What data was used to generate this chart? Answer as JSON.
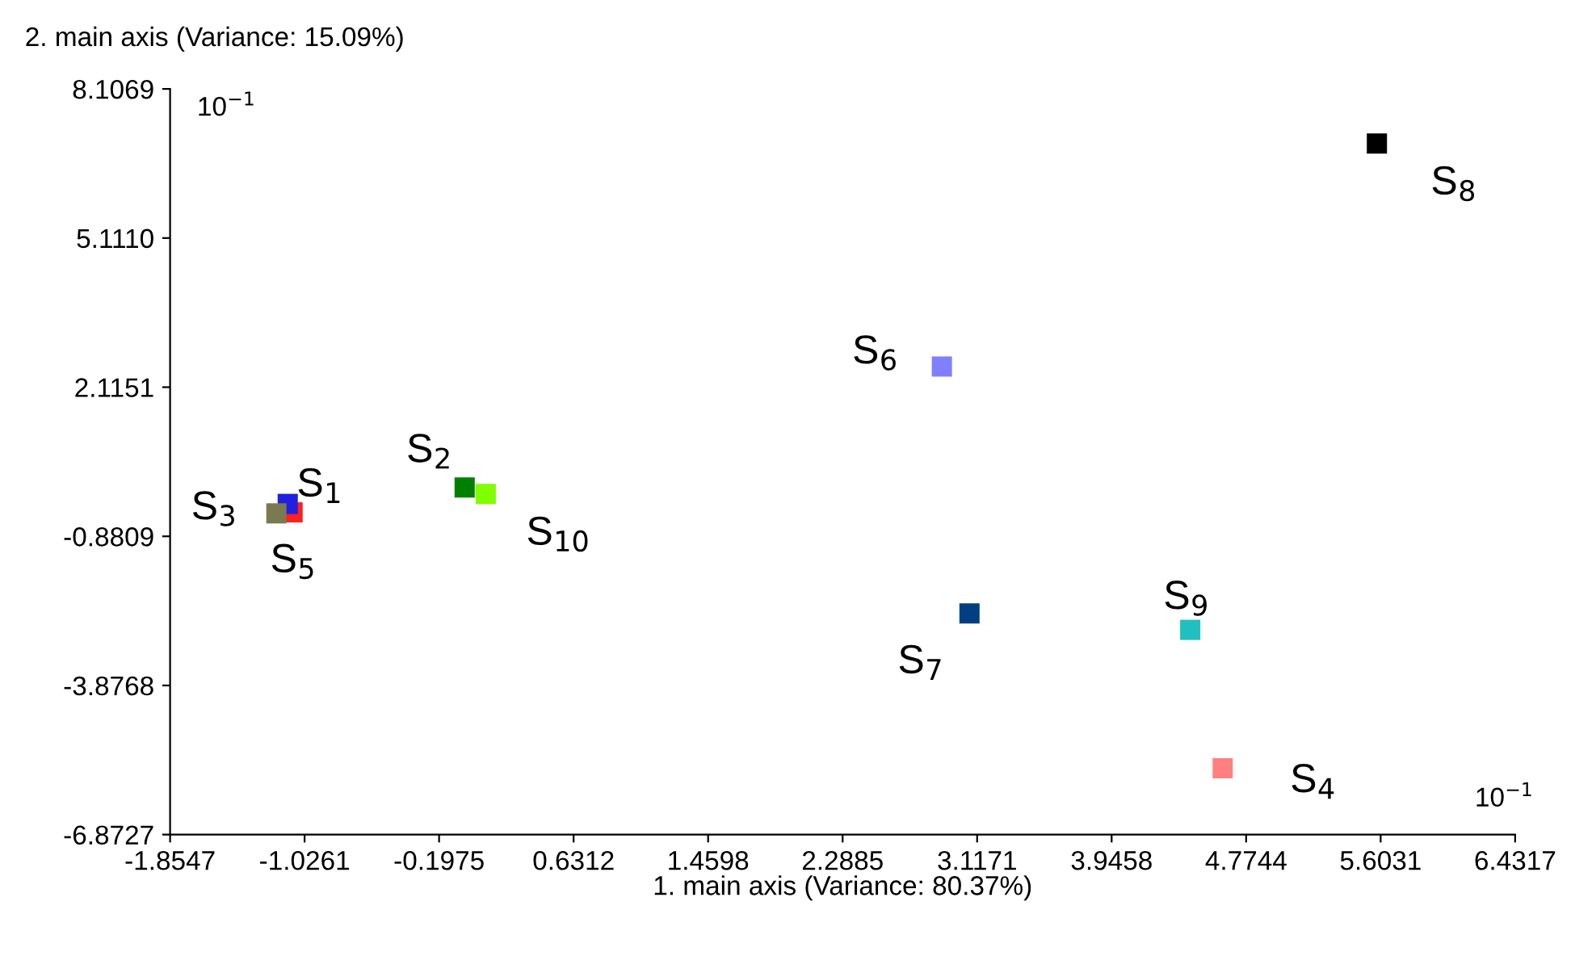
{
  "chart_data": {
    "type": "scatter",
    "xlabel": "1. main axis (Variance: 80.37%)",
    "ylabel": "2. main axis (Variance: 15.09%)",
    "annotations": [
      "10$^{−1}$",
      "10$^{−1}$"
    ],
    "marker": "square",
    "legend": false,
    "grid": false,
    "xlim": [
      -1.8547,
      6.4317
    ],
    "ylim": [
      -6.8727,
      8.1069
    ],
    "xticks": [
      -1.8547,
      -1.0261,
      -0.1975,
      0.6312,
      1.4598,
      2.2885,
      3.1171,
      3.9458,
      4.7744,
      5.6031,
      6.4317
    ],
    "yticks": [
      -6.8727,
      -3.8768,
      -0.8809,
      2.1151,
      {
        "value": 5.111,
        "label": "5.1110"
      },
      8.1069
    ],
    "series": [
      {
        "name": "S$_{5}$",
        "color": "#ff2020",
        "x": [
          -1.1
        ],
        "values": [
          -0.4
        ]
      },
      {
        "name": "S$_{1}$",
        "color": "#2020e0",
        "x": [
          -1.13
        ],
        "values": [
          -0.23
        ]
      },
      {
        "name": "S$_{3}$",
        "color": "#7a7a50",
        "x": [
          -1.2
        ],
        "values": [
          -0.42
        ]
      },
      {
        "name": "S$_{2}$",
        "color": "#008000",
        "x": [
          -0.04
        ],
        "values": [
          0.1
        ]
      },
      {
        "name": "S$_{10}$",
        "color": "#80ff00",
        "x": [
          0.09
        ],
        "values": [
          -0.03
        ]
      },
      {
        "name": "S$_{6}$",
        "color": "#8080ff",
        "x": [
          2.9
        ],
        "values": [
          2.53
        ]
      },
      {
        "name": "S$_{7}$",
        "color": "#004080",
        "x": [
          3.07
        ],
        "values": [
          -2.43
        ]
      },
      {
        "name": "S$_{9}$",
        "color": "#20c0c0",
        "x": [
          4.43
        ],
        "values": [
          -2.76
        ]
      },
      {
        "name": "S$_{4}$",
        "color": "#ff8080",
        "x": [
          4.63
        ],
        "values": [
          -5.54
        ]
      },
      {
        "name": "S$_{8}$",
        "color": "#000000",
        "x": [
          5.58
        ],
        "values": [
          7.01
        ]
      }
    ]
  }
}
